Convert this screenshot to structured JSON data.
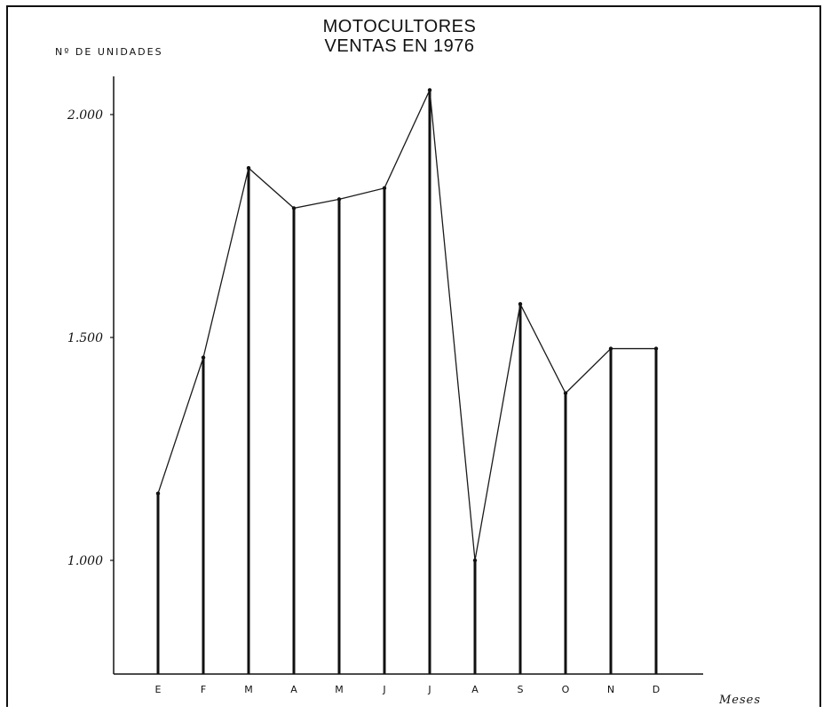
{
  "chart_data": {
    "type": "line",
    "title_lines": [
      "MOTOCULTORES",
      "VENTAS EN 1976"
    ],
    "ylabel": "Nº DE UNIDADES",
    "xlabel": "Meses",
    "categories": [
      "E",
      "F",
      "M",
      "A",
      "M",
      "J",
      "J",
      "A",
      "S",
      "O",
      "N",
      "D"
    ],
    "values": [
      1150,
      1455,
      1880,
      1790,
      1810,
      1835,
      2055,
      1000,
      1575,
      1375,
      1475,
      1475
    ],
    "yticks": [
      1000,
      1500,
      2000
    ],
    "ytick_labels": [
      "1.000",
      "1.500",
      "2.000"
    ],
    "ylim": [
      740,
      2100
    ],
    "grid": false,
    "legend": "none",
    "drop_lines": true,
    "line_color": "#1a1a1a"
  }
}
